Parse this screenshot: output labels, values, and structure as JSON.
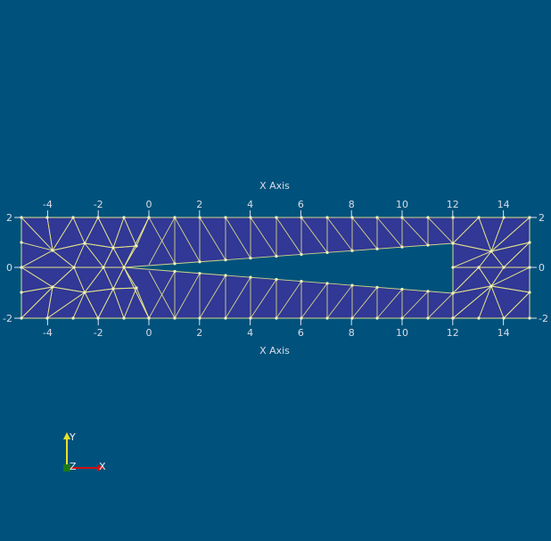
{
  "colors": {
    "background": "#00527c",
    "mesh_fill": "#313895",
    "mesh_edges": "#e6e48a",
    "axis_lines": "#dfe2ee",
    "axis_text": "#d8dde8",
    "triad_x": "#d01010",
    "triad_y": "#e8e22a",
    "triad_z": "#1a7a1a"
  },
  "icons": {
    "orientation_axes": "orientation-triad-icon"
  },
  "axes": {
    "x_title_top": "X Axis",
    "x_title_bottom": "X Axis",
    "x_ticks": [
      "-4",
      "-2",
      "0",
      "2",
      "4",
      "6",
      "8",
      "10",
      "12",
      "14"
    ],
    "y_ticks": [
      "2",
      "0",
      "-2"
    ]
  },
  "triad": {
    "x_label": "X",
    "y_label": "Y",
    "z_label": "Z"
  }
}
